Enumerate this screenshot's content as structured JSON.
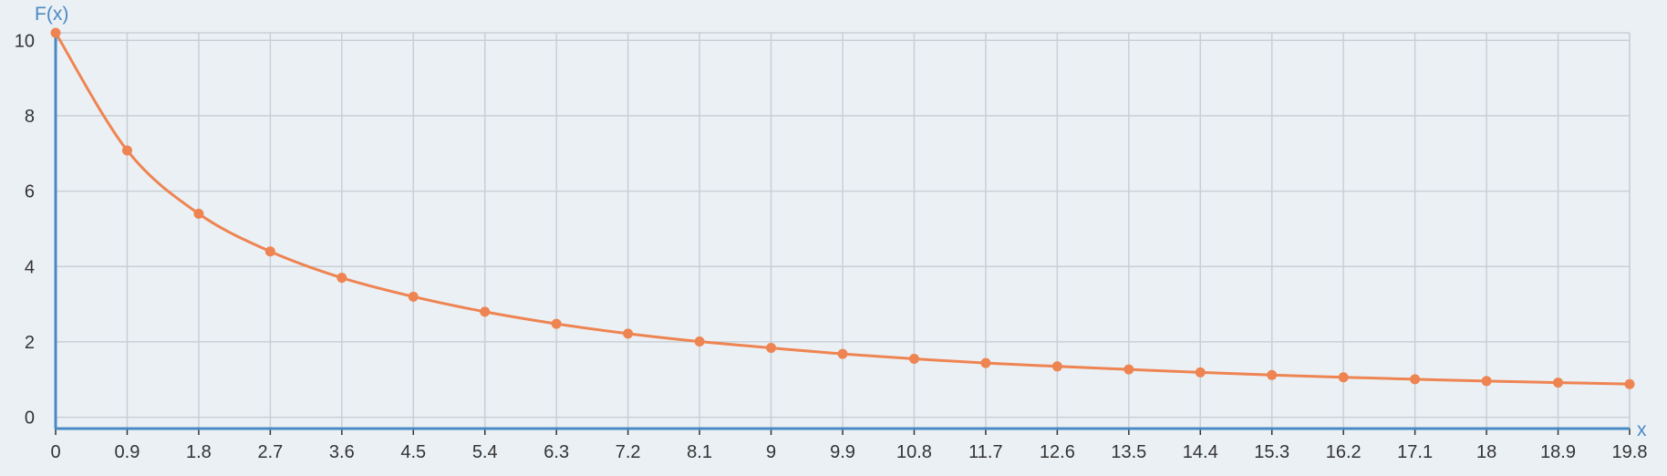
{
  "colors": {
    "background": "#ebf0f5",
    "grid": "#c9cfd6",
    "axis": "#4a8ac4",
    "series": "#ee8451",
    "tick_text": "#333333"
  },
  "chart_data": {
    "type": "line",
    "xlabel": "x",
    "ylabel": "F(x)",
    "xlim": [
      0,
      19.8
    ],
    "ylim": [
      -0.3,
      10.2
    ],
    "x_ticks": [
      "0",
      "0.9",
      "1.8",
      "2.7",
      "3.6",
      "4.5",
      "5.4",
      "6.3",
      "7.2",
      "8.1",
      "9",
      "9.9",
      "10.8",
      "11.7",
      "12.6",
      "13.5",
      "14.4",
      "15.3",
      "16.2",
      "17.1",
      "18",
      "18.9",
      "19.8"
    ],
    "y_ticks": [
      "0",
      "2",
      "4",
      "6",
      "8",
      "10"
    ],
    "grid": true,
    "series": [
      {
        "x": [
          0,
          0.9,
          1.8,
          2.7,
          3.6,
          4.5,
          5.4,
          6.3,
          7.2,
          8.1,
          9,
          9.9,
          10.8,
          11.7,
          12.6,
          13.5,
          14.4,
          15.3,
          16.2,
          17.1,
          18,
          18.9,
          19.8
        ],
        "y": [
          10.2,
          7.08,
          5.4,
          4.4,
          3.7,
          3.2,
          2.8,
          2.48,
          2.22,
          2.01,
          1.84,
          1.68,
          1.55,
          1.44,
          1.35,
          1.27,
          1.19,
          1.12,
          1.06,
          1.01,
          0.96,
          0.92,
          0.88
        ]
      }
    ]
  }
}
